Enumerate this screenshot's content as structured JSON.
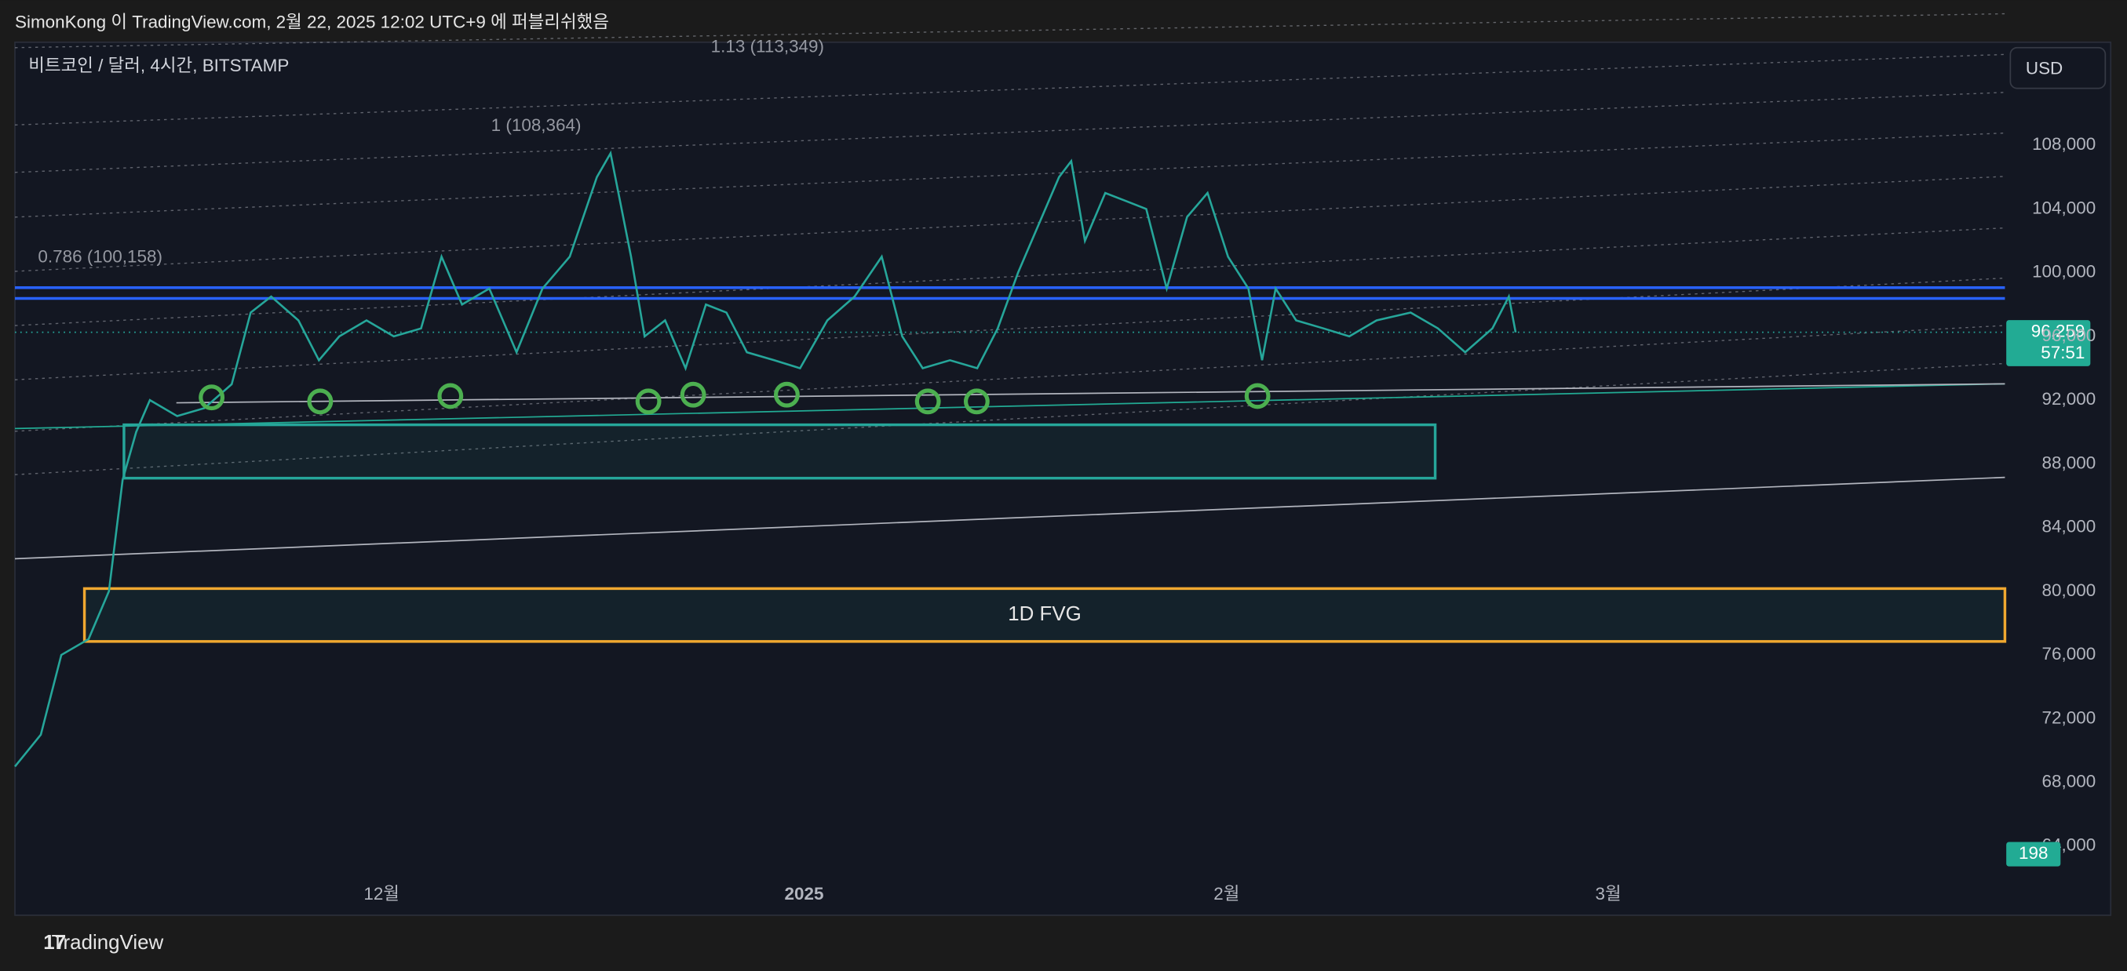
{
  "header": {
    "publisher": "SimonKong 이 TradingView.com, 2월 22, 2025 12:02 UTC+9 에 퍼블리쉬했음"
  },
  "footer": {
    "brand": "TradingView"
  },
  "chart_data": {
    "type": "line",
    "title": "비트코인 / 달러, 4시간, BITSTAMP",
    "currency": "USD",
    "color": "#26a69a",
    "x": [
      -26.9,
      -25.0,
      -23.5,
      -21.5,
      -20.0,
      -19.0,
      -18.0,
      -17.0,
      -15.0,
      -13.0,
      -11.0,
      -9.6,
      -8.1,
      -6.1,
      -4.6,
      -3.1,
      -1.1,
      0.9,
      2.9,
      4.4,
      5.9,
      7.9,
      9.9,
      11.8,
      13.8,
      15.8,
      16.8,
      18.3,
      19.3,
      20.8,
      22.3,
      23.8,
      25.3,
      26.8,
      28.8,
      30.7,
      32.7,
      34.7,
      36.7,
      38.2,
      39.7,
      41.7,
      43.7,
      45.2,
      46.7,
      48.2,
      49.7,
      50.6,
      51.6,
      53.1,
      54.6,
      56.1,
      57.6,
      59.1,
      60.6,
      62.1,
      63.6,
      64.6,
      65.6,
      67.1,
      69.1,
      71.0,
      73.0,
      75.5,
      77.5,
      79.5,
      81.5,
      82.7,
      83.2
    ],
    "values": [
      69000,
      71000,
      76000,
      77000,
      80000,
      87000,
      90000,
      92000,
      91000,
      91500,
      93000,
      97500,
      98500,
      97000,
      94500,
      96000,
      97000,
      96000,
      96500,
      101000,
      98000,
      99000,
      95000,
      99000,
      101000,
      106000,
      107500,
      101000,
      96000,
      97000,
      94000,
      98000,
      97500,
      95000,
      94500,
      94000,
      97000,
      98500,
      101000,
      96000,
      94000,
      94500,
      94000,
      96500,
      100000,
      103000,
      106000,
      107000,
      102000,
      105000,
      104500,
      104000,
      99000,
      103500,
      105000,
      101000,
      99000,
      94500,
      99000,
      97000,
      96500,
      96000,
      97000,
      97500,
      96500,
      95000,
      96500,
      98500,
      96259
    ],
    "xlim": [
      -26.9,
      119.1
    ],
    "xticks": [
      {
        "value": 0,
        "label": "12월"
      },
      {
        "value": 31,
        "label": "2025"
      },
      {
        "value": 62,
        "label": "2월"
      },
      {
        "value": 90,
        "label": "3월"
      }
    ],
    "ylim": [
      59920,
      114380
    ],
    "yticks": [
      {
        "value": 64000,
        "label": "64,000"
      },
      {
        "value": 68000,
        "label": "68,000"
      },
      {
        "value": 72000,
        "label": "72,000"
      },
      {
        "value": 76000,
        "label": "76,000"
      },
      {
        "value": 80000,
        "label": "80,000"
      },
      {
        "value": 84000,
        "label": "84,000"
      },
      {
        "value": 88000,
        "label": "88,000"
      },
      {
        "value": 92000,
        "label": "92,000"
      },
      {
        "value": 96000,
        "label": "96,000"
      },
      {
        "value": 100000,
        "label": "100,000"
      },
      {
        "value": 104000,
        "label": "104,000"
      },
      {
        "value": 108000,
        "label": "108,000"
      }
    ],
    "grid": false,
    "price_label": {
      "value": 96259,
      "label": "96,259",
      "countdown": "57:51"
    },
    "volume_label": 198,
    "levels": [
      99060,
      98380
    ],
    "level_color": "#2962ff",
    "zones": [
      {
        "x0": -18.9,
        "x1": 77.3,
        "y0": 87100,
        "y1": 90450,
        "color": "#26a69a"
      },
      {
        "x0": -21.8,
        "x1": 119.1,
        "y0": 76850,
        "y1": 80170,
        "color": "#f0a830",
        "label": "1D FVG"
      }
    ],
    "annotations": [
      "0.786 (100,158)",
      "1 (108,364)",
      "1.13 (113,349)"
    ]
  }
}
